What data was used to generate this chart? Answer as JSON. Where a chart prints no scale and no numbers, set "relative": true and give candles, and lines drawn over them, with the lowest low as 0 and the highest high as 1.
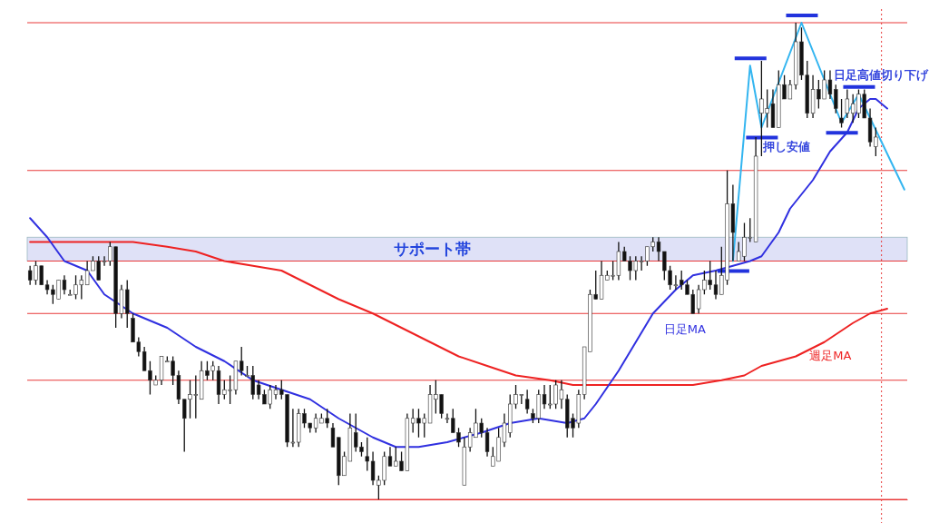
{
  "chart_data": {
    "type": "candlestick",
    "relative": true,
    "categories": [
      null,
      null,
      null,
      null,
      null,
      null,
      null,
      null,
      null,
      null,
      null,
      null,
      null,
      null,
      null,
      null,
      null,
      null,
      null,
      null,
      null,
      null,
      null,
      null,
      null,
      null,
      null,
      null,
      null,
      null,
      null,
      null,
      null,
      null,
      null,
      null,
      null,
      null,
      null,
      null,
      null,
      null,
      null,
      null,
      null,
      null,
      null,
      null,
      null,
      null,
      null,
      null,
      null,
      null,
      null,
      null,
      null,
      null,
      null,
      null,
      null,
      null,
      null,
      null,
      null,
      null,
      null,
      null,
      null,
      null,
      null,
      null,
      null,
      null,
      null,
      null,
      null,
      null,
      null,
      null,
      null,
      null,
      null,
      null,
      null,
      null,
      null,
      null,
      null,
      null,
      null,
      null,
      null,
      null,
      null,
      null,
      null,
      null,
      null,
      null,
      null,
      null,
      null,
      null,
      null,
      null,
      null,
      null,
      null,
      null,
      null,
      null,
      null,
      null,
      null,
      null,
      null,
      null,
      null,
      null,
      null,
      null,
      null,
      null,
      null,
      null,
      null,
      null,
      null,
      null,
      null,
      null,
      null,
      null,
      null,
      null,
      null,
      null,
      null,
      null,
      null,
      null,
      null,
      null,
      null,
      null,
      null,
      null,
      null,
      null,
      null,
      null,
      null,
      null
    ],
    "ohlc": [
      [
        0.48,
        0.49,
        0.45,
        0.46
      ],
      [
        0.46,
        0.5,
        0.45,
        0.49
      ],
      [
        0.49,
        0.49,
        0.45,
        0.45
      ],
      [
        0.45,
        0.46,
        0.43,
        0.44
      ],
      [
        0.44,
        0.45,
        0.41,
        0.43
      ],
      [
        0.42,
        0.46,
        0.42,
        0.46
      ],
      [
        0.46,
        0.47,
        0.43,
        0.44
      ],
      [
        0.43,
        0.44,
        0.43,
        0.43
      ],
      [
        0.43,
        0.47,
        0.42,
        0.45
      ],
      [
        0.45,
        0.47,
        0.42,
        0.46
      ],
      [
        0.45,
        0.5,
        0.45,
        0.48
      ],
      [
        0.48,
        0.51,
        0.48,
        0.5
      ],
      [
        0.5,
        0.51,
        0.46,
        0.46
      ],
      [
        0.5,
        0.51,
        0.49,
        0.5
      ],
      [
        0.5,
        0.54,
        0.49,
        0.53
      ],
      [
        0.53,
        0.53,
        0.36,
        0.39
      ],
      [
        0.39,
        0.45,
        0.38,
        0.44
      ],
      [
        0.44,
        0.46,
        0.36,
        0.39
      ],
      [
        0.38,
        0.39,
        0.33,
        0.33
      ],
      [
        0.33,
        0.34,
        0.3,
        0.31
      ],
      [
        0.31,
        0.32,
        0.27,
        0.27
      ],
      [
        0.27,
        0.29,
        0.22,
        0.25
      ],
      [
        0.24,
        0.26,
        0.24,
        0.25
      ],
      [
        0.25,
        0.3,
        0.24,
        0.3
      ],
      [
        0.29,
        0.3,
        0.29,
        0.29
      ],
      [
        0.29,
        0.3,
        0.24,
        0.26
      ],
      [
        0.26,
        0.27,
        0.2,
        0.21
      ],
      [
        0.21,
        0.21,
        0.1,
        0.17
      ],
      [
        0.21,
        0.25,
        0.17,
        0.22
      ],
      [
        0.22,
        0.26,
        0.17,
        0.22
      ],
      [
        0.21,
        0.29,
        0.21,
        0.27
      ],
      [
        0.27,
        0.29,
        0.25,
        0.26
      ],
      [
        0.27,
        0.29,
        0.25,
        0.28
      ],
      [
        0.27,
        0.28,
        0.2,
        0.22
      ],
      [
        0.22,
        0.25,
        0.21,
        0.23
      ],
      [
        0.23,
        0.26,
        0.2,
        0.23
      ],
      [
        0.23,
        0.29,
        0.22,
        0.29
      ],
      [
        0.29,
        0.32,
        0.26,
        0.27
      ],
      [
        0.26,
        0.28,
        0.26,
        0.26
      ],
      [
        0.26,
        0.28,
        0.21,
        0.22
      ],
      [
        0.24,
        0.25,
        0.21,
        0.22
      ],
      [
        0.22,
        0.23,
        0.2,
        0.2
      ],
      [
        0.2,
        0.24,
        0.19,
        0.23
      ],
      [
        0.22,
        0.24,
        0.21,
        0.23
      ],
      [
        0.23,
        0.25,
        0.21,
        0.22
      ],
      [
        0.22,
        0.22,
        0.11,
        0.12
      ],
      [
        0.12,
        0.19,
        0.11,
        0.12
      ],
      [
        0.12,
        0.19,
        0.11,
        0.18
      ],
      [
        0.18,
        0.19,
        0.15,
        0.16
      ],
      [
        0.16,
        0.16,
        0.14,
        0.15
      ],
      [
        0.15,
        0.18,
        0.14,
        0.17
      ],
      [
        0.16,
        0.18,
        0.16,
        0.17
      ],
      [
        0.17,
        0.19,
        0.15,
        0.16
      ],
      [
        0.15,
        0.16,
        0.11,
        0.11
      ],
      [
        0.13,
        0.13,
        0.03,
        0.05
      ],
      [
        0.05,
        0.1,
        0.05,
        0.09
      ],
      [
        0.08,
        0.18,
        0.08,
        0.15
      ],
      [
        0.14,
        0.18,
        0.1,
        0.11
      ],
      [
        0.11,
        0.12,
        0.09,
        0.1
      ],
      [
        0.09,
        0.13,
        0.06,
        0.08
      ],
      [
        0.08,
        0.1,
        0.03,
        0.04
      ],
      [
        0.03,
        0.05,
        0,
        0.04
      ],
      [
        0.04,
        0.1,
        0.03,
        0.09
      ],
      [
        0.09,
        0.11,
        0.07,
        0.07
      ],
      [
        0.07,
        0.11,
        0.07,
        0.08
      ],
      [
        0.08,
        0.1,
        0.06,
        0.06
      ],
      [
        0.06,
        0.18,
        0.06,
        0.17
      ],
      [
        0.16,
        0.19,
        0.14,
        0.17
      ],
      [
        0.17,
        0.19,
        0.13,
        0.16
      ],
      [
        0.16,
        0.18,
        0.13,
        0.17
      ],
      [
        0.16,
        0.24,
        0.16,
        0.22
      ],
      [
        0.21,
        0.25,
        0.18,
        0.22
      ],
      [
        0.22,
        0.22,
        0.17,
        0.18
      ],
      [
        0.17,
        0.18,
        0.16,
        0.17
      ],
      [
        0.17,
        0.19,
        0.14,
        0.14
      ],
      [
        0.14,
        0.15,
        0.11,
        0.12
      ],
      [
        0.03,
        0.13,
        0.03,
        0.11
      ],
      [
        0.11,
        0.15,
        0.1,
        0.14
      ],
      [
        0.13,
        0.19,
        0.13,
        0.16
      ],
      [
        0.16,
        0.17,
        0.13,
        0.14
      ],
      [
        0.14,
        0.15,
        0.09,
        0.1
      ],
      [
        0.07,
        0.11,
        0.07,
        0.09
      ],
      [
        0.08,
        0.15,
        0.08,
        0.13
      ],
      [
        0.12,
        0.18,
        0.11,
        0.16
      ],
      [
        0.14,
        0.22,
        0.13,
        0.2
      ],
      [
        0.2,
        0.24,
        0.19,
        0.22
      ],
      [
        0.22,
        0.22,
        0.2,
        0.22
      ],
      [
        0.21,
        0.23,
        0.18,
        0.19
      ],
      [
        0.18,
        0.19,
        0.16,
        0.17
      ],
      [
        0.17,
        0.23,
        0.16,
        0.22
      ],
      [
        0.22,
        0.24,
        0.19,
        0.2
      ],
      [
        0.2,
        0.24,
        0.19,
        0.2
      ],
      [
        0.2,
        0.25,
        0.19,
        0.24
      ],
      [
        0.21,
        0.25,
        0.19,
        0.23
      ],
      [
        0.21,
        0.22,
        0.13,
        0.15
      ],
      [
        0.17,
        0.18,
        0.13,
        0.15
      ],
      [
        0.16,
        0.23,
        0.15,
        0.22
      ],
      [
        0.22,
        0.32,
        0.21,
        0.32
      ],
      [
        0.31,
        0.44,
        0.31,
        0.43
      ],
      [
        0.43,
        0.48,
        0.42,
        0.42
      ],
      [
        0.42,
        0.5,
        0.42,
        0.47
      ],
      [
        0.46,
        0.48,
        0.46,
        0.47
      ],
      [
        0.47,
        0.5,
        0.46,
        0.47
      ],
      [
        0.47,
        0.54,
        0.46,
        0.52
      ],
      [
        0.52,
        0.53,
        0.5,
        0.5
      ],
      [
        0.5,
        0.51,
        0.46,
        0.48
      ],
      [
        0.48,
        0.51,
        0.46,
        0.5
      ],
      [
        0.5,
        0.51,
        0.48,
        0.5
      ],
      [
        0.5,
        0.53,
        0.49,
        0.53
      ],
      [
        0.53,
        0.55,
        0.52,
        0.54
      ],
      [
        0.54,
        0.55,
        0.5,
        0.52
      ],
      [
        0.52,
        0.52,
        0.46,
        0.48
      ],
      [
        0.48,
        0.49,
        0.44,
        0.45
      ],
      [
        0.45,
        0.47,
        0.44,
        0.45
      ],
      [
        0.46,
        0.48,
        0.44,
        0.45
      ],
      [
        0.45,
        0.46,
        0.43,
        0.43
      ],
      [
        0.43,
        0.44,
        0.39,
        0.39
      ],
      [
        0.4,
        0.45,
        0.39,
        0.44
      ],
      [
        0.44,
        0.48,
        0.43,
        0.46
      ],
      [
        0.46,
        0.5,
        0.44,
        0.45
      ],
      [
        0.45,
        0.48,
        0.42,
        0.43
      ],
      [
        0.43,
        0.53,
        0.43,
        0.47
      ],
      [
        0.46,
        0.69,
        0.45,
        0.62
      ],
      [
        0.62,
        0.66,
        0.5,
        0.56
      ],
      [
        0.5,
        0.54,
        0.5,
        0.52
      ],
      [
        0.51,
        0.58,
        0.5,
        0.55
      ],
      [
        0.55,
        0.59,
        0.54,
        0.55
      ],
      [
        0.54,
        0.76,
        0.54,
        0.72
      ],
      [
        0.81,
        0.92,
        0.72,
        0.84
      ],
      [
        0.81,
        0.86,
        0.78,
        0.82
      ],
      [
        0.83,
        0.86,
        0.78,
        0.78
      ],
      [
        0.78,
        0.9,
        0.78,
        0.87
      ],
      [
        0.87,
        0.89,
        0.84,
        0.84
      ],
      [
        0.84,
        0.88,
        0.84,
        0.87
      ],
      [
        0.87,
        1,
        0.86,
        0.96
      ],
      [
        0.96,
        0.99,
        0.88,
        0.89
      ],
      [
        0.89,
        0.92,
        0.8,
        0.81
      ],
      [
        0.81,
        0.89,
        0.8,
        0.86
      ],
      [
        0.86,
        0.88,
        0.82,
        0.84
      ],
      [
        0.84,
        0.9,
        0.84,
        0.88
      ],
      [
        0.88,
        0.9,
        0.84,
        0.85
      ],
      [
        0.86,
        0.87,
        0.81,
        0.82
      ],
      [
        0.8,
        0.84,
        0.78,
        0.79
      ],
      [
        0.81,
        0.86,
        0.8,
        0.84
      ],
      [
        0.81,
        0.85,
        0.79,
        0.83
      ],
      [
        0.81,
        0.86,
        0.8,
        0.85
      ],
      [
        0.85,
        0.86,
        0.8,
        0.8
      ],
      [
        0.8,
        0.82,
        0.74,
        0.75
      ],
      [
        0.74,
        0.78,
        0.72,
        0.76
      ],
      null,
      null,
      null,
      null,
      null
    ],
    "series": [
      {
        "type": "line",
        "name": "週足MA",
        "color": "#ee2222",
        "values": [
          0.54,
          null,
          null,
          null,
          null,
          0.54,
          null,
          null,
          null,
          null,
          0.54,
          null,
          null,
          null,
          0.54,
          null,
          null,
          null,
          0.54,
          null,
          null,
          null,
          null,
          null,
          0.53,
          null,
          null,
          null,
          null,
          0.52,
          null,
          null,
          null,
          null,
          0.5,
          null,
          null,
          null,
          null,
          0.49,
          null,
          null,
          null,
          null,
          0.48,
          null,
          null,
          null,
          null,
          0.45,
          null,
          null,
          null,
          null,
          0.42,
          null,
          null,
          null,
          null,
          null,
          0.39,
          null,
          null,
          null,
          null,
          0.36,
          null,
          null,
          null,
          null,
          0.33,
          null,
          null,
          null,
          null,
          0.3,
          null,
          null,
          null,
          null,
          0.28,
          null,
          null,
          null,
          null,
          0.26,
          null,
          null,
          null,
          null,
          null,
          0.25,
          null,
          null,
          null,
          0.24,
          null,
          0.24,
          null,
          null,
          null,
          null,
          null,
          0.24,
          null,
          null,
          null,
          null,
          null,
          0.24,
          null,
          null,
          null,
          null,
          null,
          null,
          0.24,
          null,
          null,
          null,
          null,
          0.25,
          null,
          null,
          null,
          0.26,
          null,
          null,
          0.28,
          null,
          null,
          null,
          null,
          null,
          0.3,
          null,
          null,
          null,
          null,
          0.33,
          null,
          null,
          null,
          null,
          0.37,
          null,
          null,
          0.39,
          null,
          null,
          0.4,
          null,
          null,
          null
        ]
      },
      {
        "type": "line",
        "name": "日足MA",
        "color": "#3030e0",
        "values": [
          0.59,
          null,
          null,
          0.55,
          null,
          null,
          0.5,
          null,
          null,
          null,
          0.48,
          null,
          null,
          0.43,
          null,
          null,
          null,
          null,
          0.39,
          null,
          null,
          null,
          null,
          null,
          0.36,
          null,
          null,
          null,
          null,
          0.32,
          null,
          null,
          null,
          null,
          0.29,
          null,
          null,
          null,
          null,
          0.25,
          null,
          null,
          null,
          null,
          0.23,
          null,
          null,
          null,
          null,
          0.21,
          null,
          null,
          null,
          null,
          0.17,
          null,
          null,
          null,
          null,
          null,
          0.13,
          null,
          null,
          null,
          0.11,
          null,
          null,
          null,
          0.11,
          null,
          null,
          null,
          null,
          0.12,
          null,
          null,
          null,
          null,
          null,
          0.14,
          null,
          null,
          null,
          null,
          0.16,
          null,
          null,
          null,
          null,
          0.17,
          null,
          null,
          null,
          null,
          0.16,
          null,
          null,
          0.17,
          null,
          0.2,
          null,
          null,
          null,
          0.27,
          null,
          null,
          0.33,
          null,
          null,
          0.39,
          null,
          null,
          null,
          0.44,
          null,
          null,
          0.47,
          null,
          null,
          null,
          0.48,
          null,
          null,
          0.49,
          null,
          null,
          0.5,
          null,
          0.51,
          null,
          null,
          0.56,
          null,
          0.61,
          null,
          null,
          null,
          0.67,
          null,
          null,
          0.73,
          null,
          null,
          0.77,
          null,
          0.82,
          null,
          0.84,
          0.84,
          null,
          0.82,
          null,
          null,
          null
        ]
      },
      {
        "type": "line",
        "color": "#33b5f0",
        "values": [
          null,
          null,
          null,
          null,
          null,
          null,
          null,
          null,
          null,
          null,
          null,
          null,
          null,
          null,
          null,
          null,
          null,
          null,
          null,
          null,
          null,
          null,
          null,
          null,
          null,
          null,
          null,
          null,
          null,
          null,
          null,
          null,
          null,
          null,
          null,
          null,
          null,
          null,
          null,
          null,
          null,
          null,
          null,
          null,
          null,
          null,
          null,
          null,
          null,
          null,
          null,
          null,
          null,
          null,
          null,
          null,
          null,
          null,
          null,
          null,
          null,
          null,
          null,
          null,
          null,
          null,
          null,
          null,
          null,
          null,
          null,
          null,
          null,
          null,
          null,
          null,
          null,
          null,
          null,
          null,
          null,
          null,
          null,
          null,
          null,
          null,
          null,
          null,
          null,
          null,
          null,
          null,
          null,
          null,
          null,
          null,
          null,
          null,
          null,
          null,
          null,
          null,
          null,
          null,
          null,
          null,
          null,
          null,
          null,
          null,
          null,
          null,
          null,
          null,
          null,
          null,
          null,
          null,
          null,
          null,
          null,
          null,
          null,
          0.5,
          null,
          null,
          0.91,
          null,
          0.78,
          null,
          null,
          null,
          null,
          null,
          null,
          1,
          null,
          null,
          null,
          null,
          null,
          null,
          0.79,
          null,
          null,
          0.85,
          null,
          null,
          null,
          null,
          null,
          null,
          null,
          0.65
        ]
      }
    ],
    "ref_lines": [
      {
        "axis": "y",
        "value": 1,
        "color": "#e83838"
      },
      {
        "axis": "y",
        "value": 0.69,
        "color": "#e83838"
      },
      {
        "axis": "y",
        "value": 0.5,
        "color": "#e83838"
      },
      {
        "axis": "y",
        "value": 0.39,
        "color": "#e83838"
      },
      {
        "axis": "y",
        "value": 0.25,
        "color": "#e83838"
      },
      {
        "axis": "y",
        "value": 0
      }
    ],
    "bands": [
      {
        "axis": "y",
        "from": 0.5,
        "to": 0.55,
        "label": "サポート帯",
        "color": "#dfe1f7"
      }
    ],
    "annotations": [
      "押し安値",
      "日足高値切り下げ"
    ]
  }
}
